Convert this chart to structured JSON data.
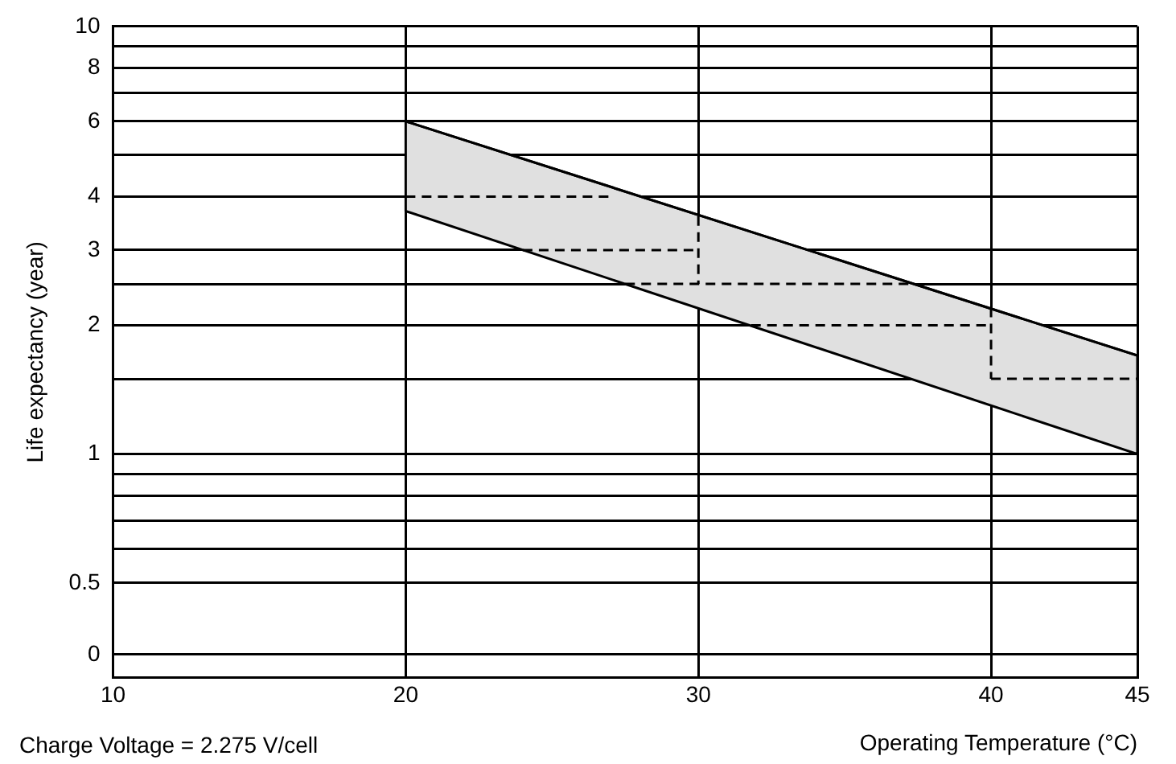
{
  "chart_data": {
    "type": "line",
    "ylabel": "Life expectancy (year)",
    "xlabel": "Operating Temperature (°C)",
    "annotations": [
      "Charge Voltage = 2.275 V/cell"
    ],
    "log": "y",
    "grid": true,
    "legend": false,
    "marker": "none",
    "xlim": [
      10,
      45
    ],
    "xticks": [
      10,
      20,
      30,
      40,
      45
    ],
    "ylim": [
      0.34,
      10
    ],
    "yticks": [
      {
        "value": 0.34,
        "label": "0"
      },
      0.5,
      {
        "value": 0.6,
        "label": null
      },
      {
        "value": 0.7,
        "label": null
      },
      {
        "value": 0.8,
        "label": null
      },
      {
        "value": 0.9,
        "label": null
      },
      1,
      {
        "value": 1.5,
        "label": null
      },
      2,
      {
        "value": 2.5,
        "label": null
      },
      3,
      4,
      {
        "value": 5,
        "label": null
      },
      6,
      {
        "value": 7,
        "label": null
      },
      8,
      {
        "value": 9,
        "label": null
      },
      10
    ],
    "series": [
      {
        "type": "line",
        "color": "#000000",
        "x": [
          20,
          45
        ],
        "values": [
          6,
          1.7
        ],
        "lower": [
          3.7,
          1
        ],
        "upper": [
          6,
          1.7
        ]
      },
      {
        "color": "#000000",
        "line_style": "dashed",
        "x": [
          20,
          27
        ],
        "values": [
          4,
          4
        ]
      },
      {
        "color": "#000000",
        "line_style": "dashed",
        "x": [
          24,
          30
        ],
        "values": [
          3,
          3
        ]
      },
      {
        "color": "#000000",
        "line_style": "dashed",
        "x": [
          30,
          30
        ],
        "values": [
          3.6,
          2.5
        ]
      },
      {
        "color": "#000000",
        "line_style": "dashed",
        "x": [
          27.5,
          37.3
        ],
        "values": [
          2.5,
          2.5
        ]
      },
      {
        "color": "#000000",
        "line_style": "dashed",
        "x": [
          31.8,
          40
        ],
        "values": [
          2,
          2
        ]
      },
      {
        "color": "#000000",
        "line_style": "dashed",
        "x": [
          40,
          40
        ],
        "values": [
          2.2,
          1.5
        ]
      },
      {
        "color": "#000000",
        "line_style": "dashed",
        "x": [
          40,
          45
        ],
        "values": [
          1.5,
          1.5
        ]
      }
    ]
  }
}
